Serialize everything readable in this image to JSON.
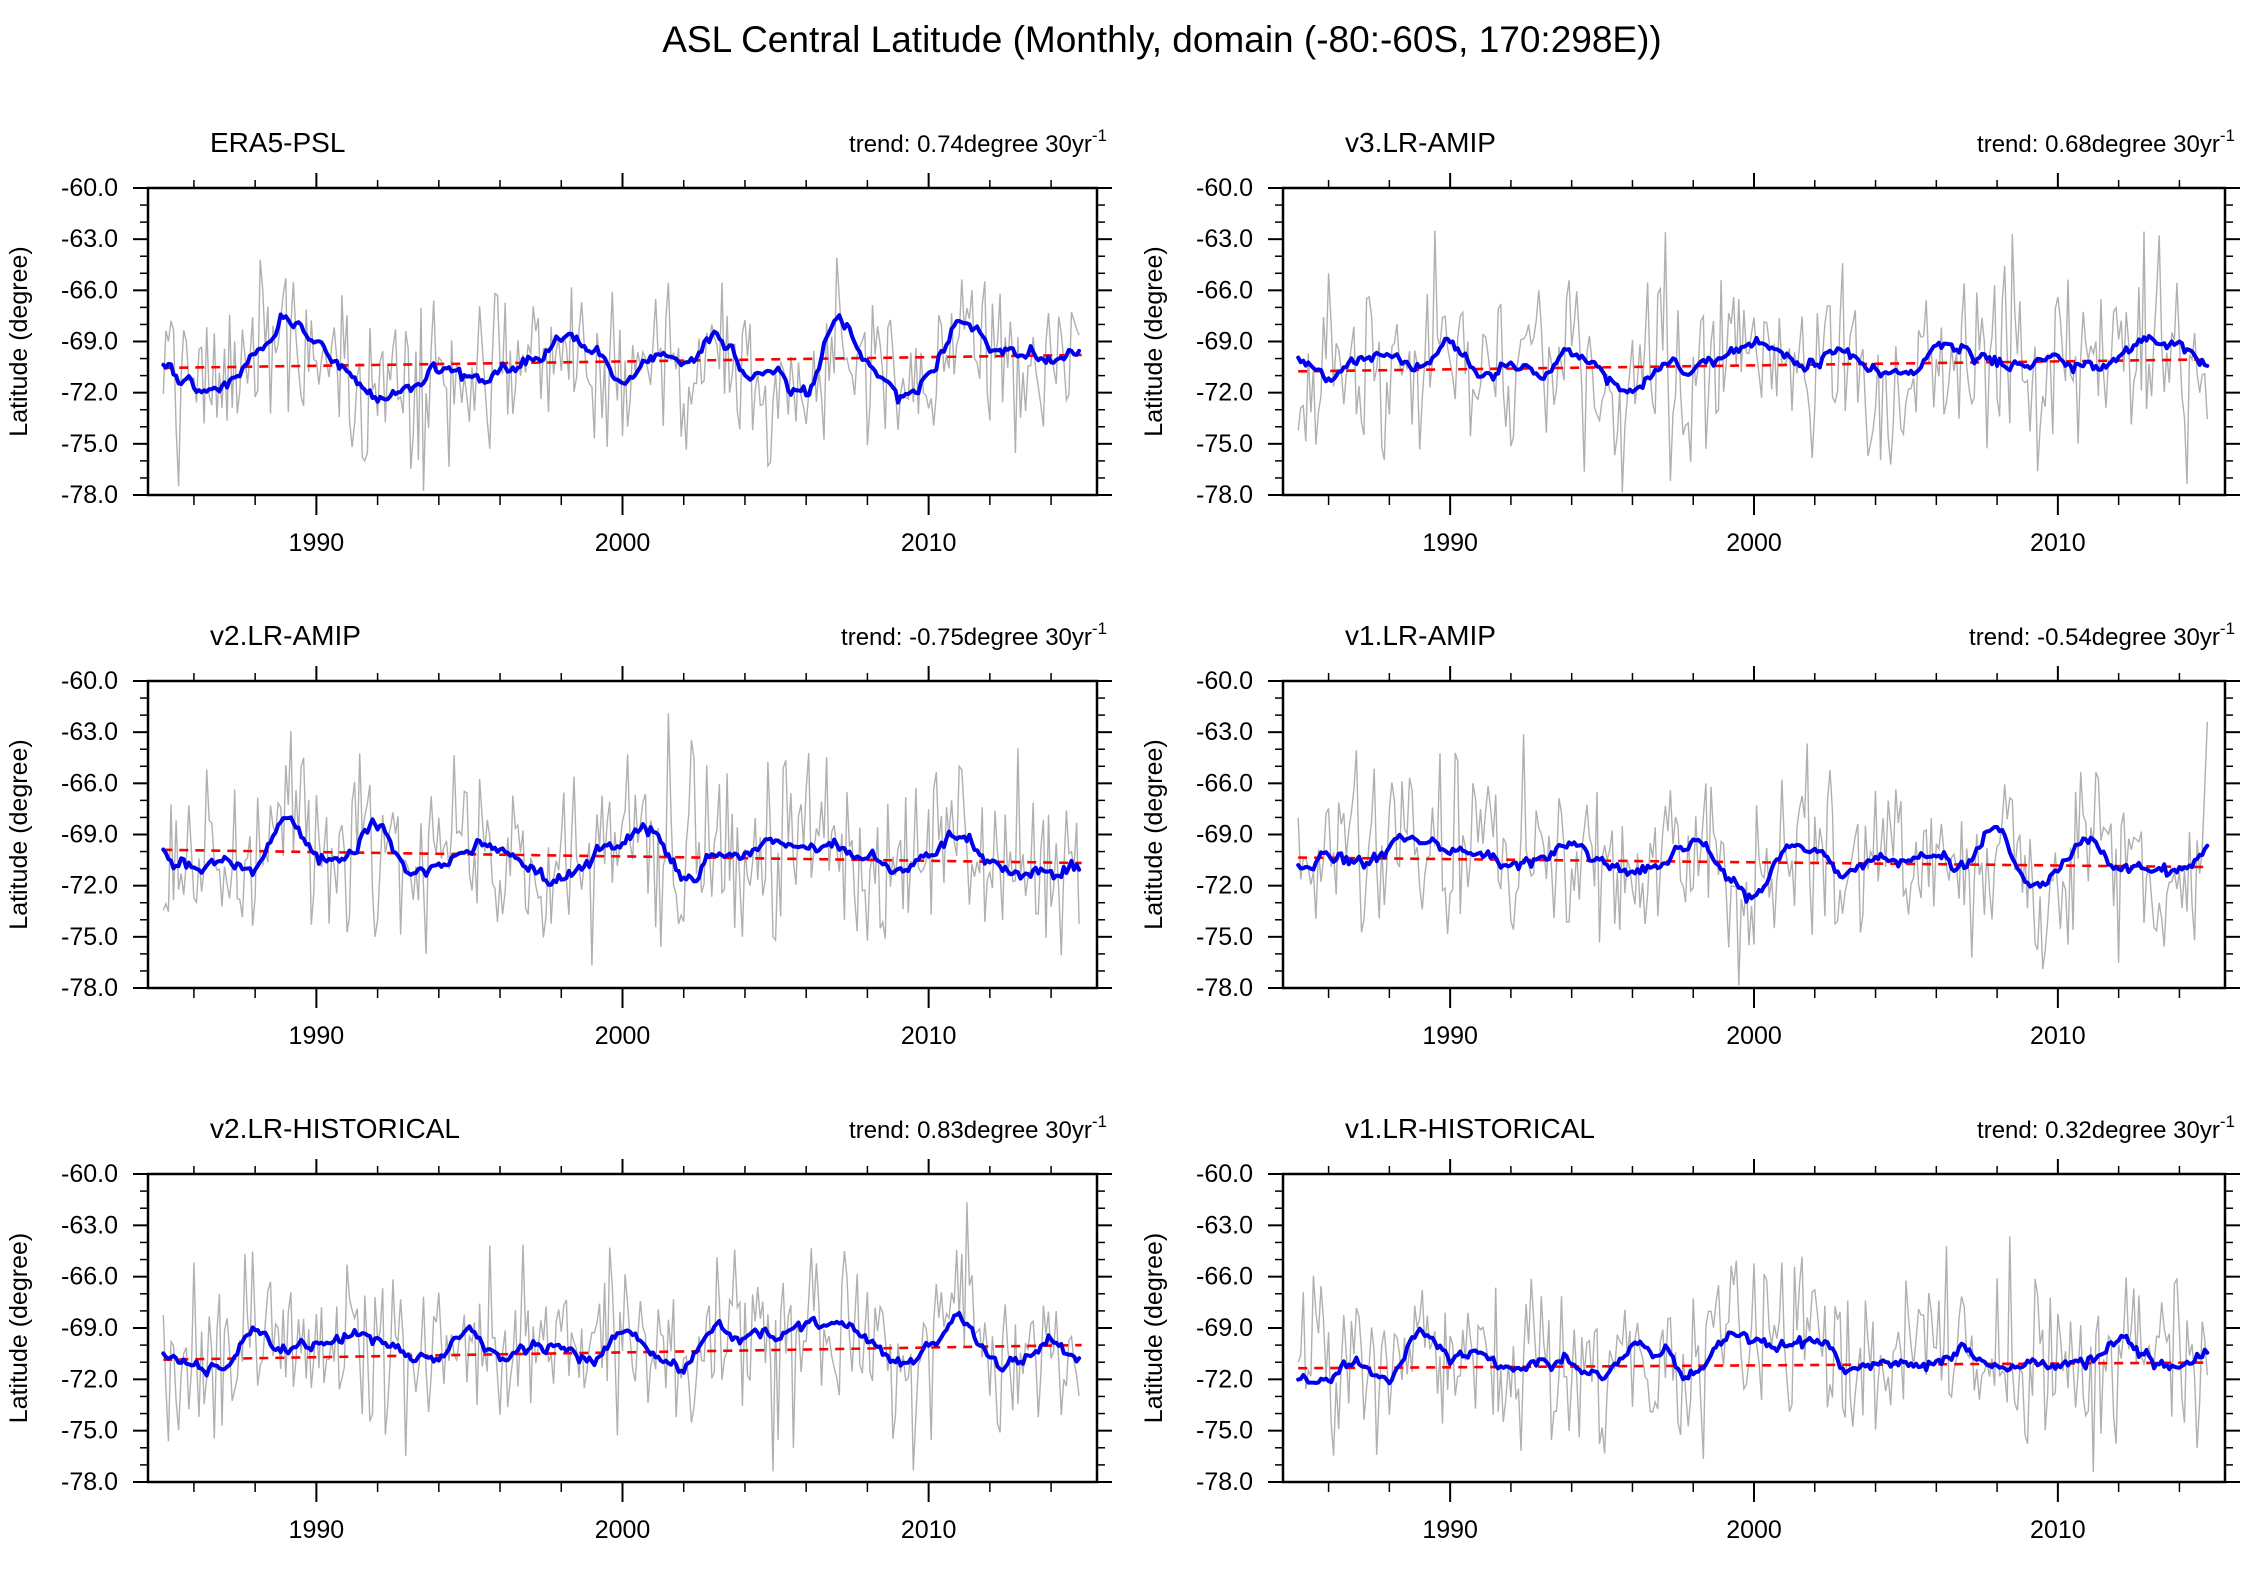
{
  "title": "ASL Central Latitude (Monthly, domain (-80:-60S, 170:298E))",
  "axes": {
    "ylabel": "Latitude (degree)",
    "ylim": [
      -78.0,
      -60.0
    ],
    "ytick_major": [
      -60.0,
      -63.0,
      -66.0,
      -69.0,
      -72.0,
      -75.0,
      -78.0
    ],
    "ytick_labels": [
      "-60.0",
      "-63.0",
      "-66.0",
      "-69.0",
      "-72.0",
      "-75.0",
      "-78.0"
    ],
    "ytick_minor_step": 1.0,
    "xlim": [
      1984.5,
      2015.5
    ],
    "xtick_major": [
      1990,
      2000,
      2010
    ],
    "xtick_labels": [
      "1990",
      "2000",
      "2010"
    ],
    "xtick_minor_step": 2,
    "grid": false
  },
  "colors": {
    "monthly_line": "#b0b0b0",
    "smoothed_line": "#0000ee",
    "trend_line": "#ff0000",
    "frame": "#000000"
  },
  "chart_data": [
    {
      "type": "line",
      "title": "ERA5-PSL",
      "trend_text": "trend: 0.74degree 30yr",
      "trend_exponent": "-1",
      "trend_degree_per_30yr": 0.74,
      "x_start": 1985,
      "x_step": 1,
      "trend_line_y": [
        -70.55,
        -69.79
      ],
      "smoothed_yearly": [
        -70.4,
        -71.6,
        -71.6,
        -69.8,
        -67.8,
        -68.8,
        -70.9,
        -72.3,
        -71.9,
        -70.7,
        -71.2,
        -70.7,
        -69.9,
        -68.7,
        -69.3,
        -71.6,
        -69.7,
        -70.3,
        -68.7,
        -70.6,
        -70.7,
        -71.9,
        -67.7,
        -70.2,
        -72.2,
        -71.0,
        -68.1,
        -69.0,
        -69.6,
        -70.0,
        -69.4
      ],
      "generation": {
        "seed": 101,
        "monthly_sd": 2.45
      }
    },
    {
      "type": "line",
      "title": "v3.LR-AMIP",
      "trend_text": "trend: 0.68degree 30yr",
      "trend_exponent": "-1",
      "trend_degree_per_30yr": 0.68,
      "x_start": 1985,
      "x_step": 1,
      "trend_line_y": [
        -70.75,
        -70.05
      ],
      "smoothed_yearly": [
        -70.3,
        -71.3,
        -69.9,
        -69.6,
        -70.6,
        -69.2,
        -70.9,
        -70.6,
        -71.2,
        -69.7,
        -70.6,
        -72.2,
        -70.2,
        -70.8,
        -69.9,
        -69.1,
        -69.9,
        -70.3,
        -69.6,
        -70.7,
        -71.0,
        -69.2,
        -69.8,
        -70.2,
        -70.1,
        -70.0,
        -70.5,
        -69.9,
        -69.3,
        -69.3,
        -70.3
      ],
      "generation": {
        "seed": 202,
        "monthly_sd": 2.45
      }
    },
    {
      "type": "line",
      "title": "v2.LR-AMIP",
      "trend_text": "trend: -0.75degree 30yr",
      "trend_exponent": "-1",
      "trend_degree_per_30yr": -0.75,
      "x_start": 1985,
      "x_step": 1,
      "trend_line_y": [
        -69.9,
        -70.67
      ],
      "smoothed_yearly": [
        -69.9,
        -71.0,
        -70.6,
        -70.9,
        -67.8,
        -69.9,
        -70.2,
        -68.5,
        -71.0,
        -70.9,
        -69.9,
        -69.7,
        -70.7,
        -71.8,
        -70.0,
        -69.4,
        -68.9,
        -71.5,
        -70.3,
        -70.0,
        -69.2,
        -70.1,
        -69.6,
        -70.4,
        -71.0,
        -70.3,
        -69.2,
        -70.6,
        -71.2,
        -71.2,
        -71.0
      ],
      "generation": {
        "seed": 303,
        "monthly_sd": 2.45
      }
    },
    {
      "type": "line",
      "title": "v1.LR-AMIP",
      "trend_text": "trend: -0.54degree 30yr",
      "trend_exponent": "-1",
      "trend_degree_per_30yr": -0.54,
      "x_start": 1985,
      "x_step": 1,
      "trend_line_y": [
        -70.35,
        -70.91
      ],
      "smoothed_yearly": [
        -71.0,
        -70.2,
        -70.8,
        -69.5,
        -69.2,
        -70.0,
        -70.0,
        -70.7,
        -70.3,
        -69.8,
        -70.8,
        -71.3,
        -70.6,
        -69.4,
        -71.2,
        -72.5,
        -70.0,
        -69.8,
        -71.3,
        -70.3,
        -70.6,
        -70.3,
        -70.8,
        -68.6,
        -71.8,
        -71.0,
        -69.4,
        -70.9,
        -70.9,
        -71.3,
        -69.5
      ],
      "generation": {
        "seed": 404,
        "monthly_sd": 2.45
      }
    },
    {
      "type": "line",
      "title": "v2.LR-HISTORICAL",
      "trend_text": "trend: 0.83degree 30yr",
      "trend_exponent": "-1",
      "trend_degree_per_30yr": 0.83,
      "x_start": 1985,
      "x_step": 1,
      "trend_line_y": [
        -70.85,
        -70.0
      ],
      "smoothed_yearly": [
        -70.8,
        -71.1,
        -71.4,
        -69.2,
        -70.4,
        -69.9,
        -69.6,
        -69.6,
        -70.7,
        -70.6,
        -69.2,
        -70.7,
        -70.1,
        -70.1,
        -70.8,
        -69.2,
        -70.5,
        -71.3,
        -69.2,
        -69.5,
        -69.3,
        -68.6,
        -69.0,
        -69.7,
        -71.0,
        -70.2,
        -68.5,
        -70.9,
        -71.2,
        -69.8,
        -71.0
      ],
      "generation": {
        "seed": 505,
        "monthly_sd": 2.45
      }
    },
    {
      "type": "line",
      "title": "v1.LR-HISTORICAL",
      "trend_text": "trend: 0.32degree 30yr",
      "trend_exponent": "-1",
      "trend_degree_per_30yr": 0.32,
      "x_start": 1985,
      "x_step": 1,
      "trend_line_y": [
        -71.35,
        -71.02
      ],
      "smoothed_yearly": [
        -72.0,
        -72.0,
        -70.8,
        -71.8,
        -69.3,
        -70.6,
        -70.7,
        -71.2,
        -71.0,
        -71.2,
        -71.8,
        -70.0,
        -70.4,
        -71.8,
        -69.5,
        -69.6,
        -70.2,
        -69.8,
        -71.1,
        -71.0,
        -71.1,
        -71.0,
        -70.0,
        -71.5,
        -71.0,
        -71.3,
        -71.0,
        -69.4,
        -70.9,
        -71.1,
        -70.5
      ],
      "generation": {
        "seed": 606,
        "monthly_sd": 2.45
      }
    }
  ]
}
